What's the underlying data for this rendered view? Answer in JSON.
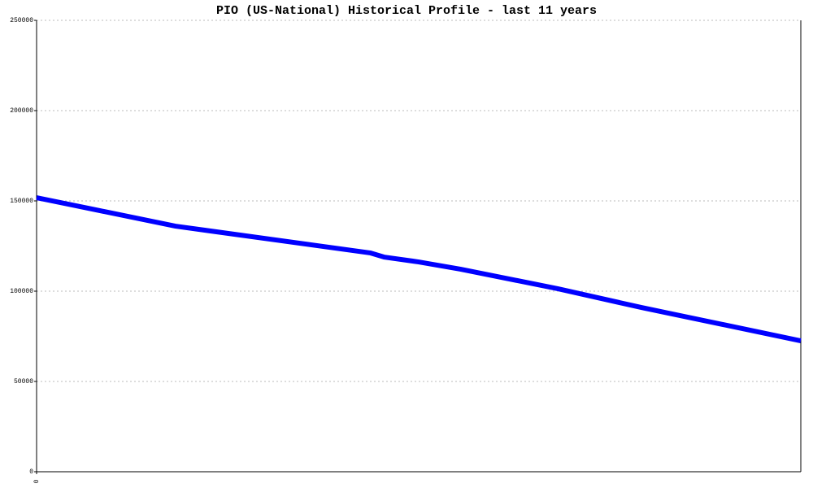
{
  "chart_data": {
    "type": "line",
    "title": "PIO (US-National) Historical Profile - last 11 years",
    "x": [
      0,
      2,
      4.8,
      5,
      5.5,
      6.1,
      7.5,
      8.7,
      11
    ],
    "series": [
      {
        "name": "PIO",
        "color": "#0000ff",
        "values": [
          151800,
          136000,
          121200,
          118900,
          116200,
          112200,
          101400,
          91000,
          72500
        ]
      }
    ],
    "xlim": [
      0,
      11
    ],
    "xticks": [
      0
    ],
    "ylim": [
      0,
      250000
    ],
    "yticks": [
      0,
      50000,
      100000,
      150000,
      200000,
      250000
    ],
    "grid": true,
    "legend": false
  }
}
